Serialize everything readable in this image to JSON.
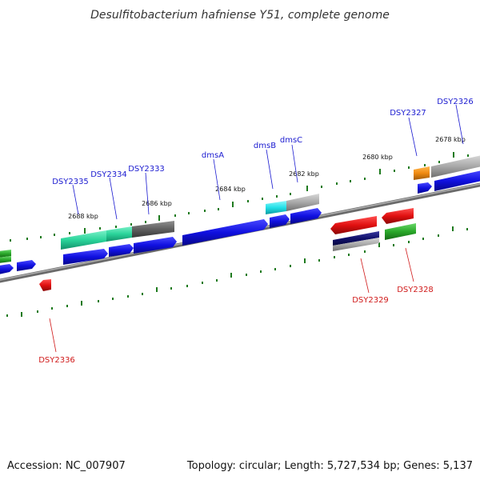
{
  "title": "Desulfitobacterium hafniense Y51, complete genome",
  "footer": {
    "accession": "Accession: NC_007907",
    "summary": "Topology: circular; Length: 5,727,534 bp; Genes: 5,137"
  },
  "ticks": [
    "2688 kbp",
    "2686 kbp",
    "2684 kbp",
    "2682 kbp",
    "2680 kbp",
    "2678 kbp"
  ],
  "labels_top": [
    "DSY2335",
    "DSY2334",
    "DSY2333",
    "dmsA",
    "dmsB",
    "dmsC",
    "DSY2327",
    "DSY2326"
  ],
  "labels_bottom": [
    "DSY2336",
    "DSY2329",
    "DSY2328"
  ],
  "colors": {
    "blue": "#1010e0",
    "red": "#e01010",
    "green": "#2aa82a",
    "teal": "#2ad49a",
    "cyan": "#22e0e8",
    "grey": "#a8a8a8",
    "dark_grey": "#606060",
    "orange": "#f08a10",
    "navy": "#10106a",
    "backbone": "#888888",
    "tick_green": "#1e7a1e"
  }
}
